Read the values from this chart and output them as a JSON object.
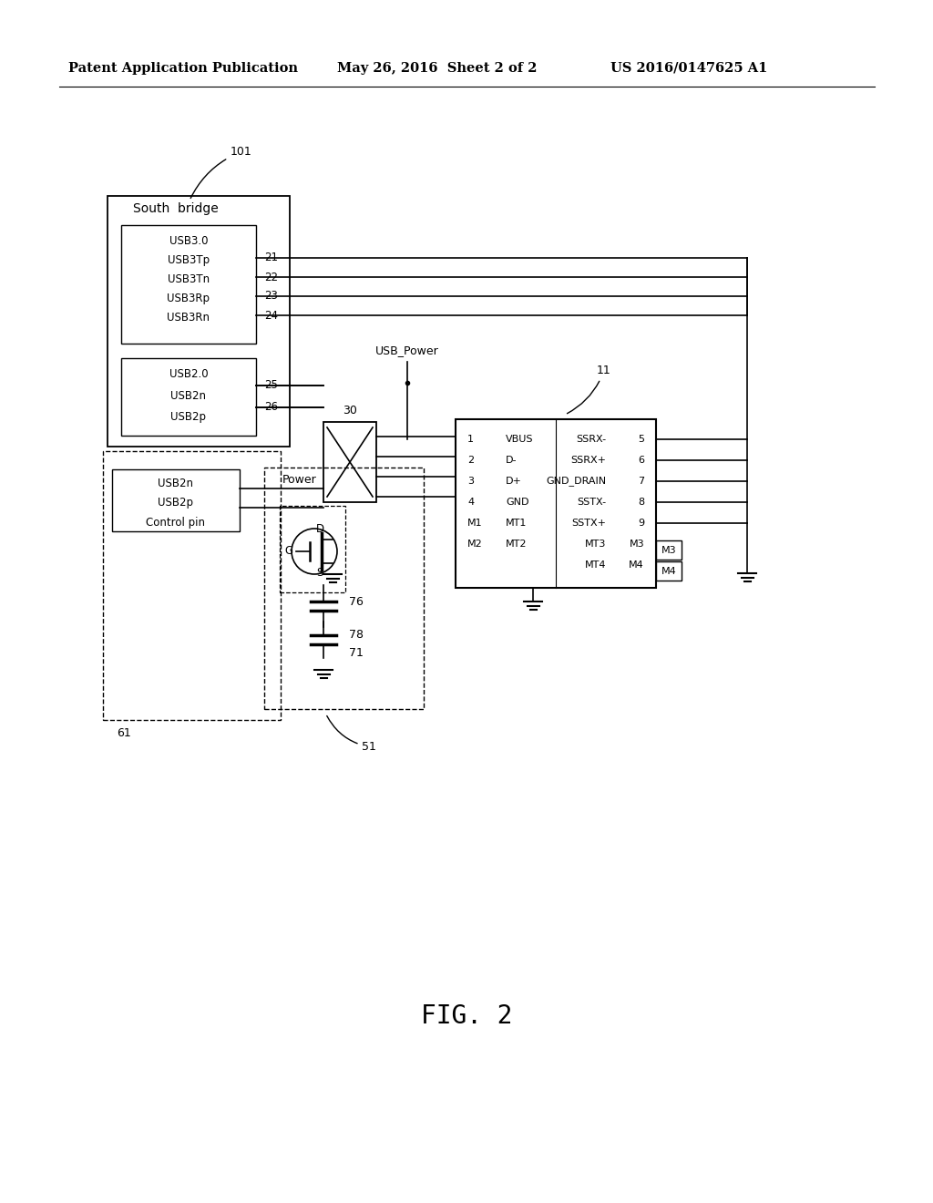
{
  "bg_color": "#ffffff",
  "line_color": "#000000",
  "header_left": "Patent Application Publication",
  "header_mid": "May 26, 2016  Sheet 2 of 2",
  "header_right": "US 2016/0147625 A1",
  "figure_label": "FIG. 2",
  "south_bridge_label": "South  bridge",
  "usb3_box_labels": [
    "USB3.0",
    "USB3Tp",
    "USB3Tn",
    "USB3Rp",
    "USB3Rn"
  ],
  "usb3_pins": [
    "21",
    "22",
    "23",
    "24"
  ],
  "usb2_box_labels": [
    "USB2.0",
    "USB2n",
    "USB2p"
  ],
  "usb2_pins": [
    "25",
    "26"
  ],
  "usb_power_label": "USB_Power",
  "connector_label": "11",
  "mux_label": "30",
  "conn_left_pins": [
    "1",
    "2",
    "3",
    "4",
    "M1",
    "M2"
  ],
  "conn_left_labels": [
    "VBUS",
    "D-",
    "D+",
    "GND",
    "MT1",
    "MT2"
  ],
  "conn_right_pins": [
    "5",
    "6",
    "7",
    "8",
    "9",
    "M3",
    "M4"
  ],
  "conn_right_labels": [
    "SSRX-",
    "SSRX+",
    "GND_DRAIN",
    "SSTX-",
    "SSTX+",
    "MT3",
    "MT4"
  ],
  "power_label": "Power",
  "mosfet_g": "G",
  "mosfet_d": "D",
  "mosfet_s": "S",
  "label_76": "76",
  "label_78": "78",
  "label_71": "71",
  "label_61": "61",
  "label_51": "51",
  "label_101": "101",
  "control_box_labels": [
    "USB2n",
    "USB2p",
    "Control pin"
  ]
}
